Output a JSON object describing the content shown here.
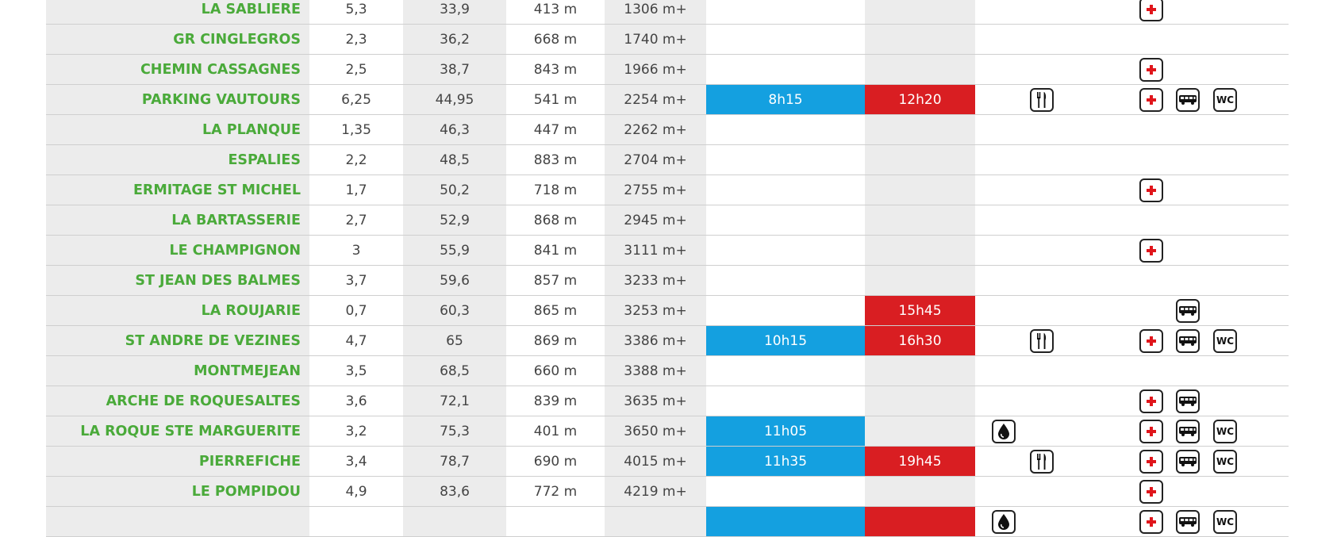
{
  "icons": {
    "aid": "first-aid-icon",
    "bus": "shuttle-bus-icon",
    "food": "restaurant-icon",
    "water": "water-drop-icon",
    "wc": "WC"
  },
  "colors": {
    "name": "#4aaa3a",
    "open": "#14a0e0",
    "close": "#d91e22",
    "shade": "#ececec"
  },
  "rows": [
    {
      "name": "LA SABLIERE",
      "dist": "5,3",
      "cum": "33,9",
      "alt": "413 m",
      "dplus": "1306 m+",
      "open": "",
      "close": "",
      "food": false,
      "water": false,
      "aid": true,
      "bus": false,
      "wc": false
    },
    {
      "name": "GR CINGLEGROS",
      "dist": "2,3",
      "cum": "36,2",
      "alt": "668 m",
      "dplus": "1740 m+",
      "open": "",
      "close": "",
      "food": false,
      "water": false,
      "aid": false,
      "bus": false,
      "wc": false
    },
    {
      "name": "CHEMIN CASSAGNES",
      "dist": "2,5",
      "cum": "38,7",
      "alt": "843 m",
      "dplus": "1966 m+",
      "open": "",
      "close": "",
      "food": false,
      "water": false,
      "aid": true,
      "bus": false,
      "wc": false
    },
    {
      "name": "PARKING VAUTOURS",
      "dist": "6,25",
      "cum": "44,95",
      "alt": "541 m",
      "dplus": "2254 m+",
      "open": "8h15",
      "close": "12h20",
      "food": true,
      "water": false,
      "aid": true,
      "bus": true,
      "wc": true
    },
    {
      "name": "LA PLANQUE",
      "dist": "1,35",
      "cum": "46,3",
      "alt": "447 m",
      "dplus": "2262 m+",
      "open": "",
      "close": "",
      "food": false,
      "water": false,
      "aid": false,
      "bus": false,
      "wc": false
    },
    {
      "name": "ESPALIES",
      "dist": "2,2",
      "cum": "48,5",
      "alt": "883 m",
      "dplus": "2704 m+",
      "open": "",
      "close": "",
      "food": false,
      "water": false,
      "aid": false,
      "bus": false,
      "wc": false
    },
    {
      "name": "ERMITAGE ST MICHEL",
      "dist": "1,7",
      "cum": "50,2",
      "alt": "718 m",
      "dplus": "2755 m+",
      "open": "",
      "close": "",
      "food": false,
      "water": false,
      "aid": true,
      "bus": false,
      "wc": false
    },
    {
      "name": "LA BARTASSERIE",
      "dist": "2,7",
      "cum": "52,9",
      "alt": "868 m",
      "dplus": "2945 m+",
      "open": "",
      "close": "",
      "food": false,
      "water": false,
      "aid": false,
      "bus": false,
      "wc": false
    },
    {
      "name": "LE CHAMPIGNON",
      "dist": "3",
      "cum": "55,9",
      "alt": "841 m",
      "dplus": "3111 m+",
      "open": "",
      "close": "",
      "food": false,
      "water": false,
      "aid": true,
      "bus": false,
      "wc": false
    },
    {
      "name": "ST JEAN DES BALMES",
      "dist": "3,7",
      "cum": "59,6",
      "alt": "857 m",
      "dplus": "3233 m+",
      "open": "",
      "close": "",
      "food": false,
      "water": false,
      "aid": false,
      "bus": false,
      "wc": false
    },
    {
      "name": "LA ROUJARIE",
      "dist": "0,7",
      "cum": "60,3",
      "alt": "865 m",
      "dplus": "3253 m+",
      "open": "",
      "close": "15h45",
      "food": false,
      "water": false,
      "aid": false,
      "bus": true,
      "wc": false
    },
    {
      "name": "ST ANDRE DE VEZINES",
      "dist": "4,7",
      "cum": "65",
      "alt": "869 m",
      "dplus": "3386 m+",
      "open": "10h15",
      "close": "16h30",
      "food": true,
      "water": false,
      "aid": true,
      "bus": true,
      "wc": true
    },
    {
      "name": "MONTMEJEAN",
      "dist": "3,5",
      "cum": "68,5",
      "alt": "660 m",
      "dplus": "3388 m+",
      "open": "",
      "close": "",
      "food": false,
      "water": false,
      "aid": false,
      "bus": false,
      "wc": false
    },
    {
      "name": "ARCHE DE ROQUESALTES",
      "dist": "3,6",
      "cum": "72,1",
      "alt": "839 m",
      "dplus": "3635 m+",
      "open": "",
      "close": "",
      "food": false,
      "water": false,
      "aid": true,
      "bus": true,
      "wc": false
    },
    {
      "name": "LA ROQUE STE MARGUERITE",
      "dist": "3,2",
      "cum": "75,3",
      "alt": "401 m",
      "dplus": "3650 m+",
      "open": "11h05",
      "close": "",
      "food": false,
      "water": true,
      "aid": true,
      "bus": true,
      "wc": true
    },
    {
      "name": "PIERREFICHE",
      "dist": "3,4",
      "cum": "78,7",
      "alt": "690 m",
      "dplus": "4015 m+",
      "open": "11h35",
      "close": "19h45",
      "food": true,
      "water": false,
      "aid": true,
      "bus": true,
      "wc": true
    },
    {
      "name": "LE POMPIDOU",
      "dist": "4,9",
      "cum": "83,6",
      "alt": "772 m",
      "dplus": "4219 m+",
      "open": "",
      "close": "",
      "food": false,
      "water": false,
      "aid": true,
      "bus": false,
      "wc": false
    },
    {
      "name": "",
      "dist": "",
      "cum": "",
      "alt": "",
      "dplus": "",
      "open": "",
      "close": "",
      "partial_open": true,
      "partial_close": true,
      "food": false,
      "water": true,
      "aid": true,
      "bus": true,
      "wc": true
    }
  ]
}
